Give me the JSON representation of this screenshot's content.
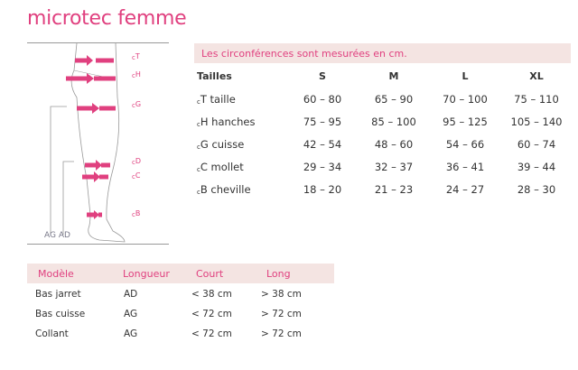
{
  "title": "microtec femme",
  "figure": {
    "labels": [
      "T",
      "H",
      "G",
      "D",
      "C",
      "B"
    ],
    "length_labels": "AG AD",
    "accent": "#e0407f"
  },
  "sizes_table": {
    "caption": "Les circonférences sont mesurées en cm.",
    "headers": [
      "Tailles",
      "S",
      "M",
      "L",
      "XL"
    ],
    "rows": [
      {
        "code": "T",
        "name": "taille",
        "values": [
          "60 – 80",
          "65 – 90",
          "70 – 100",
          "75 – 110"
        ]
      },
      {
        "code": "H",
        "name": "hanches",
        "values": [
          "75 – 95",
          "85 – 100",
          "95 – 125",
          "105 – 140"
        ]
      },
      {
        "code": "G",
        "name": "cuisse",
        "values": [
          "42 – 54",
          "48 – 60",
          "54 – 66",
          "60 – 74"
        ]
      },
      {
        "code": "C",
        "name": "mollet",
        "values": [
          "29 – 34",
          "32 – 37",
          "36 – 41",
          "39 – 44"
        ]
      },
      {
        "code": "B",
        "name": "cheville",
        "values": [
          "18 – 20",
          "21 – 23",
          "24 – 27",
          "28 – 30"
        ]
      }
    ]
  },
  "models_table": {
    "headers": [
      "Modèle",
      "Longueur",
      "Court",
      "Long"
    ],
    "rows": [
      [
        "Bas jarret",
        "AD",
        "< 38 cm",
        "> 38 cm"
      ],
      [
        "Bas cuisse",
        "AG",
        "< 72 cm",
        "> 72 cm"
      ],
      [
        "Collant",
        "AG",
        "< 72 cm",
        "> 72 cm"
      ]
    ]
  }
}
